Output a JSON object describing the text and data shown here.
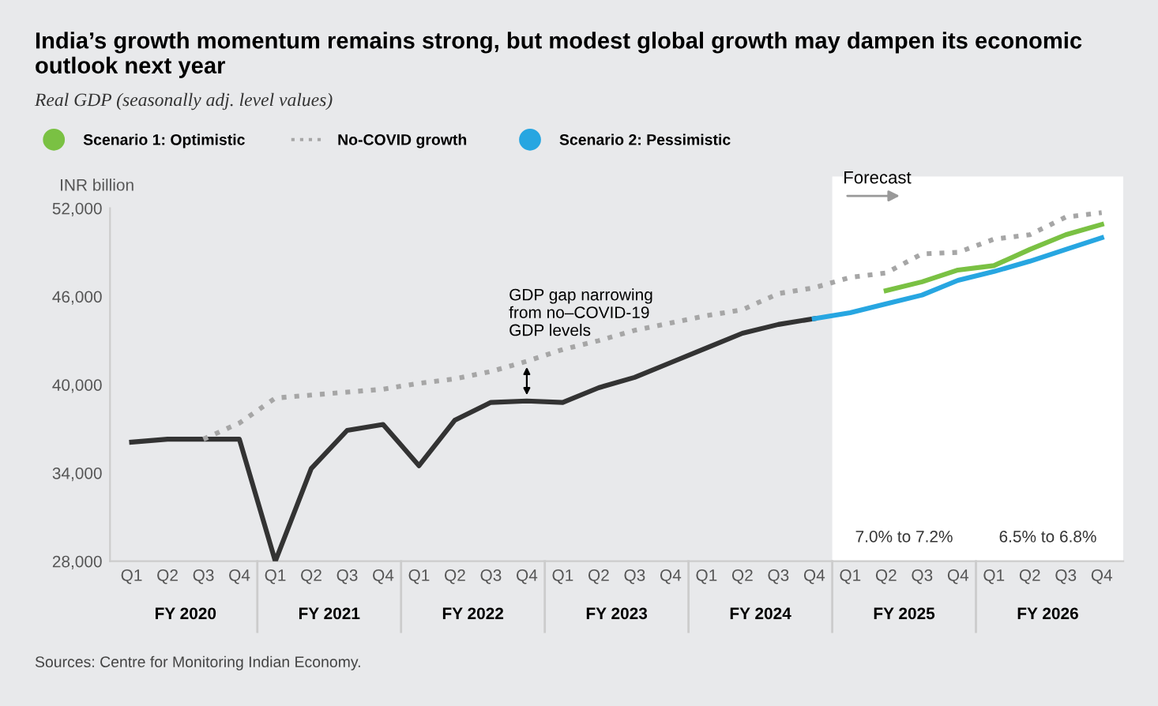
{
  "chart_data": {
    "type": "line",
    "title": "India’s growth momentum remains strong, but modest global growth may dampen its economic outlook next year",
    "subtitle": "Real GDP (seasonally adj. level values)",
    "ylabel": "INR billion",
    "categories": [
      "Q1",
      "Q2",
      "Q3",
      "Q4",
      "Q1",
      "Q2",
      "Q3",
      "Q4",
      "Q1",
      "Q2",
      "Q3",
      "Q4",
      "Q1",
      "Q2",
      "Q3",
      "Q4",
      "Q1",
      "Q2",
      "Q3",
      "Q4",
      "Q1",
      "Q2",
      "Q3",
      "Q4",
      "Q1",
      "Q2",
      "Q3",
      "Q4"
    ],
    "series": [
      {
        "color": "#333333",
        "line_style": "solid",
        "values": [
          36100,
          36300,
          36300,
          36300,
          28000,
          34300,
          36900,
          37300,
          34500,
          37600,
          38800,
          38900,
          38800,
          39800,
          40500,
          41500,
          42500,
          43500,
          44100,
          44500,
          null,
          null,
          null,
          null,
          null,
          null,
          null,
          null
        ]
      },
      {
        "name": "Scenario 1: Optimistic",
        "color": "#7ac143",
        "line_style": "solid",
        "values": [
          null,
          null,
          null,
          null,
          null,
          null,
          null,
          null,
          null,
          null,
          null,
          null,
          null,
          null,
          null,
          null,
          null,
          null,
          null,
          null,
          null,
          46400,
          47000,
          47800,
          48100,
          49200,
          50200,
          50900
        ]
      },
      {
        "name": "No-COVID growth",
        "color": "#a6a6a6",
        "line_style": "dotted",
        "values": [
          null,
          null,
          36300,
          37400,
          39100,
          39300,
          39500,
          39700,
          40100,
          40400,
          40900,
          41600,
          42400,
          43000,
          43700,
          44200,
          44700,
          45100,
          46200,
          46600,
          47300,
          47600,
          48900,
          49000,
          49900,
          50200,
          51400,
          51700
        ]
      },
      {
        "name": "Scenario 2: Pessimistic",
        "color": "#27a6e1",
        "line_style": "solid",
        "values": [
          null,
          null,
          null,
          null,
          null,
          null,
          null,
          null,
          null,
          null,
          null,
          null,
          null,
          null,
          null,
          null,
          null,
          null,
          null,
          44500,
          44900,
          45500,
          46100,
          47100,
          47700,
          48400,
          49200,
          50000
        ]
      }
    ],
    "ylim": [
      28000,
      52000
    ],
    "yticks": [
      {
        "value": 28000,
        "label": "28,000"
      },
      {
        "value": 34000,
        "label": "34,000"
      },
      {
        "value": 40000,
        "label": "40,000"
      },
      {
        "value": 46000,
        "label": "46,000"
      },
      {
        "value": 52000,
        "label": "52,000"
      }
    ],
    "grid": false,
    "legend": "top left",
    "marker": "none",
    "annotations": [
      "GDP gap narrowing\nfrom no–COVID-19\nGDP levels",
      "FY 2020",
      "FY 2021",
      "FY 2022",
      "FY 2023",
      "FY 2024",
      "FY 2025",
      "FY 2026",
      "7.0% to 7.2%",
      "6.5% to 6.8%",
      "Forecast",
      "Sources: Centre for Monitoring Indian Economy."
    ]
  }
}
